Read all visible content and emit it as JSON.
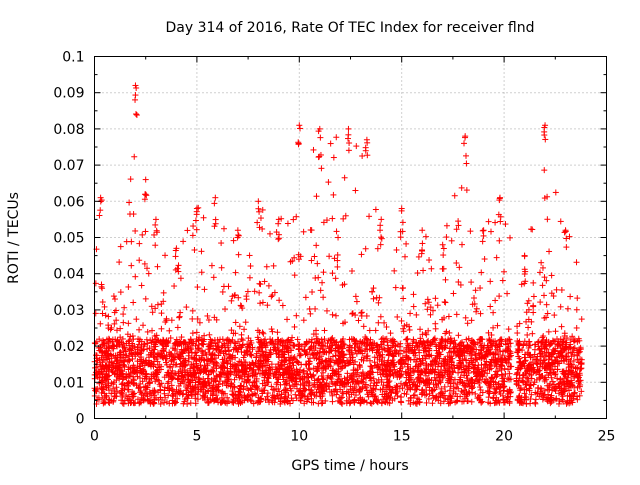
{
  "chart_data": {
    "type": "scatter",
    "title": "Day 314 of 2016, Rate Of TEC Index for receiver flnd",
    "xlabel": "GPS time / hours",
    "ylabel": "ROTI / TECUs",
    "xlim": [
      0,
      25
    ],
    "ylim": [
      0,
      0.1
    ],
    "x_tick_labels": [
      "0",
      "5",
      "10",
      "15",
      "20",
      "25"
    ],
    "y_tick_labels": [
      "0",
      "0.01",
      "0.02",
      "0.03",
      "0.04",
      "0.05",
      "0.06",
      "0.07",
      "0.08",
      "0.09",
      "0.1"
    ],
    "grid": true,
    "marker": "+",
    "color": "#ff0000",
    "series": [
      {
        "name": "ROTI",
        "note": "dense scatter, representative envelope of hourly maxima (data units)",
        "hourly_peak": [
          {
            "x": 0.3,
            "y": 0.061
          },
          {
            "x": 1.0,
            "y": 0.033
          },
          {
            "x": 2.0,
            "y": 0.092
          },
          {
            "x": 2.5,
            "y": 0.066
          },
          {
            "x": 3.0,
            "y": 0.055
          },
          {
            "x": 4.0,
            "y": 0.047
          },
          {
            "x": 5.0,
            "y": 0.058
          },
          {
            "x": 5.9,
            "y": 0.061
          },
          {
            "x": 7.0,
            "y": 0.052
          },
          {
            "x": 8.0,
            "y": 0.06
          },
          {
            "x": 9.0,
            "y": 0.055
          },
          {
            "x": 10.0,
            "y": 0.081
          },
          {
            "x": 11.0,
            "y": 0.08
          },
          {
            "x": 12.4,
            "y": 0.08
          },
          {
            "x": 13.3,
            "y": 0.077
          },
          {
            "x": 14.0,
            "y": 0.055
          },
          {
            "x": 15.0,
            "y": 0.058
          },
          {
            "x": 16.0,
            "y": 0.052
          },
          {
            "x": 17.0,
            "y": 0.048
          },
          {
            "x": 18.1,
            "y": 0.078
          },
          {
            "x": 19.0,
            "y": 0.052
          },
          {
            "x": 19.8,
            "y": 0.061
          },
          {
            "x": 21.0,
            "y": 0.045
          },
          {
            "x": 22.0,
            "y": 0.081
          },
          {
            "x": 23.0,
            "y": 0.052
          }
        ]
      }
    ]
  }
}
